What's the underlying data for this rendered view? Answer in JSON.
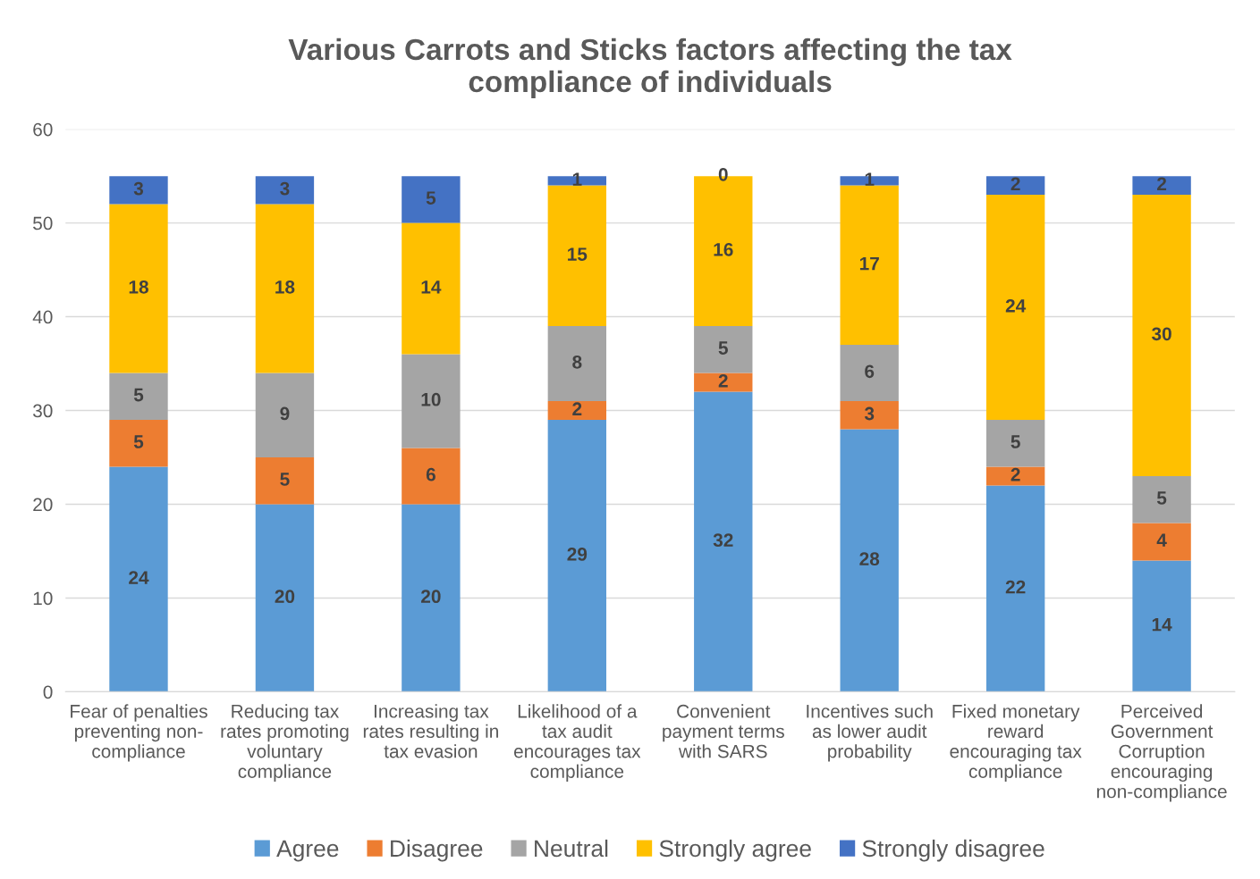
{
  "chart_data": {
    "type": "bar",
    "stacked": true,
    "title": "Various Carrots and Sticks factors affecting the tax\ncompliance of individuals",
    "categories": [
      "Fear of penalties\npreventing non-\ncompliance",
      "Reducing tax\nrates promoting\nvoluntary\ncompliance",
      "Increasing tax\nrates resulting in\ntax evasion",
      "Likelihood of a\ntax audit\nencourages tax\ncompliance",
      "Convenient\npayment terms\nwith SARS",
      "Incentives such\nas lower audit\nprobability",
      "Fixed monetary\nreward\nencouraging tax\ncompliance",
      "Perceived\nGovernment\nCorruption\nencouraging\nnon-compliance"
    ],
    "series": [
      {
        "name": "Agree",
        "color": "#5b9bd5",
        "values": [
          24,
          20,
          20,
          29,
          32,
          28,
          22,
          14
        ]
      },
      {
        "name": "Disagree",
        "color": "#ed7d31",
        "values": [
          5,
          5,
          6,
          2,
          2,
          3,
          2,
          4
        ]
      },
      {
        "name": "Neutral",
        "color": "#a5a5a5",
        "values": [
          5,
          9,
          10,
          8,
          5,
          6,
          5,
          5
        ]
      },
      {
        "name": "Strongly agree",
        "color": "#ffc000",
        "values": [
          18,
          18,
          14,
          15,
          16,
          17,
          24,
          30
        ]
      },
      {
        "name": "Strongly disagree",
        "color": "#4472c4",
        "values": [
          3,
          3,
          5,
          1,
          0,
          1,
          2,
          2
        ]
      }
    ],
    "ylim": [
      0,
      60
    ],
    "yticks": [
      0,
      10,
      20,
      30,
      40,
      50,
      60
    ],
    "grid": "y",
    "legend": "bottom",
    "data_labels": true
  }
}
